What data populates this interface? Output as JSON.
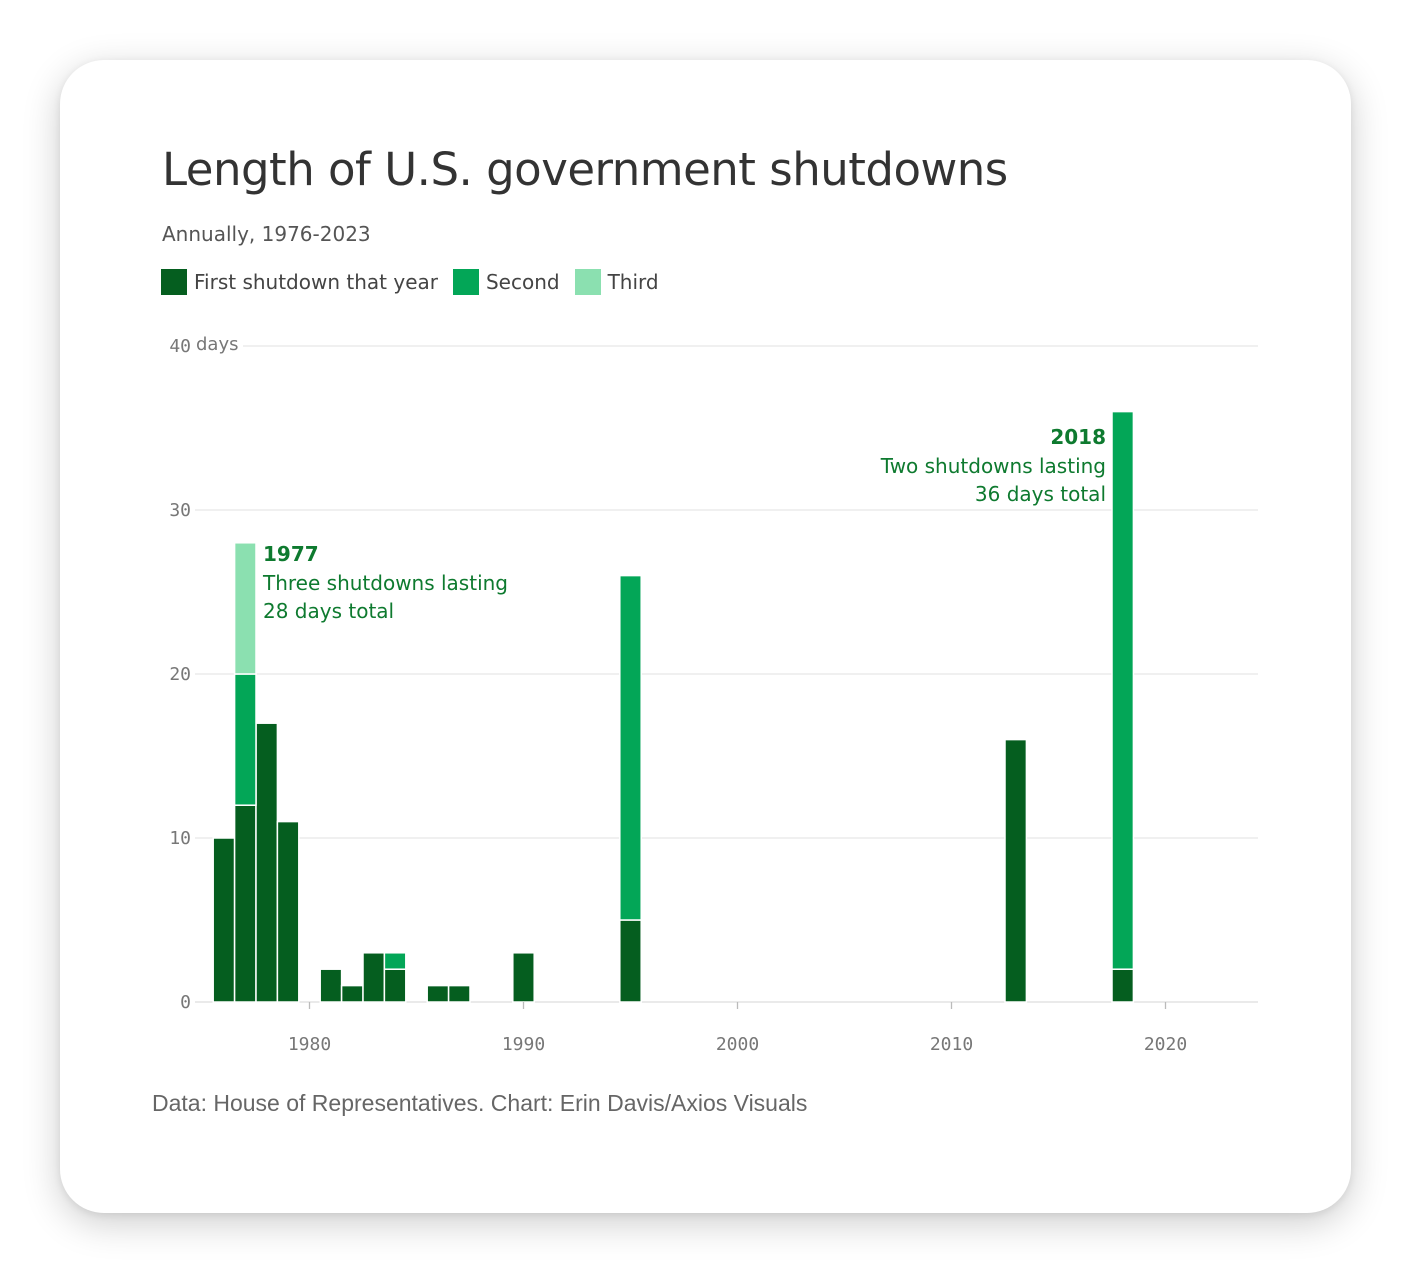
{
  "chart_data": {
    "type": "bar",
    "stacked": true,
    "title": "Length of U.S. government shutdowns",
    "subtitle": "Annually, 1976-2023",
    "ylabel": "days",
    "xlabel": "",
    "ylim": [
      0,
      40
    ],
    "xlim": [
      1975.5,
      2023.5
    ],
    "yticks": [
      0,
      10,
      20,
      30,
      40
    ],
    "xticks": [
      1980,
      1990,
      2000,
      2010,
      2020
    ],
    "colors": {
      "first": "#055e1f",
      "second": "#03a657",
      "third": "#8be0b0",
      "grid": "#e6e6e6",
      "axis": "#dddddd"
    },
    "legend": [
      {
        "key": "first",
        "label": "First shutdown that year"
      },
      {
        "key": "second",
        "label": "Second"
      },
      {
        "key": "third",
        "label": "Third"
      }
    ],
    "series": [
      {
        "key": "first",
        "name": "First shutdown that year",
        "x": [
          1976,
          1977,
          1978,
          1979,
          1981,
          1982,
          1983,
          1984,
          1986,
          1987,
          1990,
          1995,
          2013,
          2018
        ],
        "values": [
          10,
          12,
          17,
          11,
          2,
          1,
          3,
          2,
          1,
          1,
          3,
          5,
          16,
          2
        ]
      },
      {
        "key": "second",
        "name": "Second",
        "x": [
          1977,
          1984,
          1995,
          2018
        ],
        "values": [
          8,
          1,
          21,
          34
        ]
      },
      {
        "key": "third",
        "name": "Third",
        "x": [
          1977
        ],
        "values": [
          8
        ]
      }
    ],
    "annotations": [
      {
        "year_label": "1977",
        "lines": [
          "Three shutdowns lasting",
          "28 days total"
        ]
      },
      {
        "year_label": "2018",
        "lines": [
          "Two shutdowns lasting",
          "36 days total"
        ]
      }
    ]
  },
  "source": "Data: House of Representatives. Chart: Erin Davis/Axios Visuals"
}
